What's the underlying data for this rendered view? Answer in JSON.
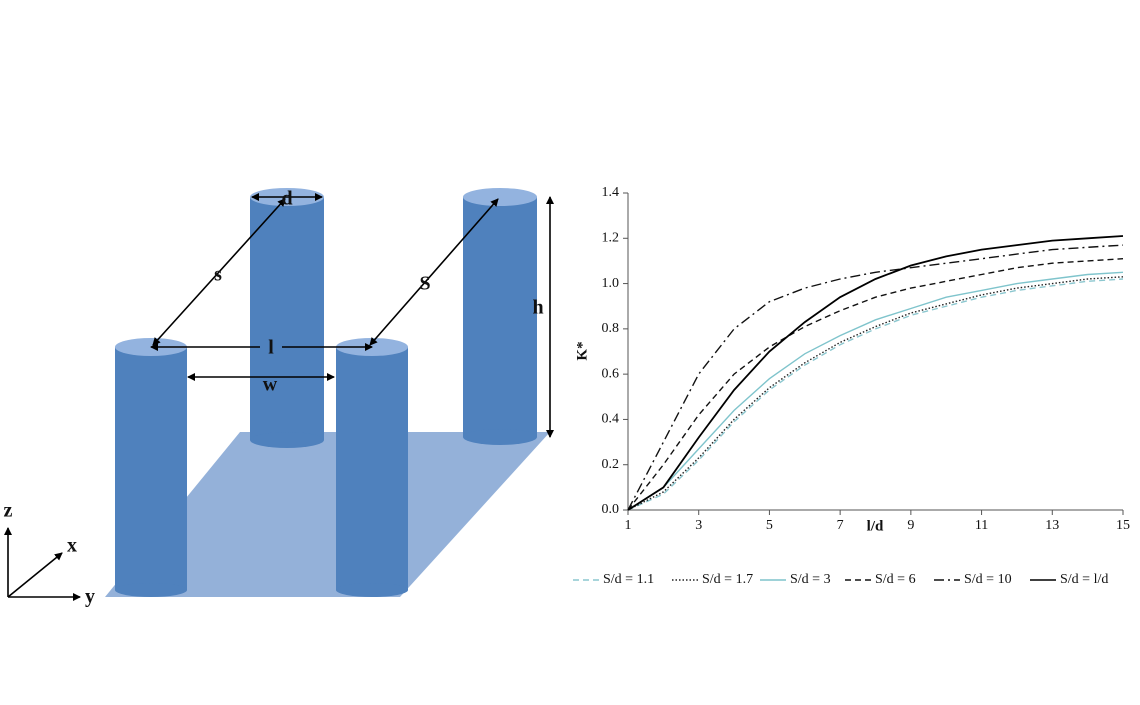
{
  "diagram": {
    "labels": {
      "d": "d",
      "s": "s",
      "S": "S",
      "l": "l",
      "w": "w",
      "h": "h",
      "z": "z",
      "x": "x",
      "y": "y"
    }
  },
  "chart_data": {
    "type": "line",
    "xlabel": "l/d",
    "ylabel": "K*",
    "x": [
      1,
      2,
      3,
      4,
      5,
      6,
      7,
      8,
      9,
      10,
      11,
      12,
      13,
      14,
      15
    ],
    "xlim": [
      1,
      15
    ],
    "xticks": [
      1,
      3,
      5,
      7,
      9,
      11,
      13,
      15
    ],
    "ylim": [
      0,
      1.4
    ],
    "yticks": [
      {
        "value": 0,
        "label": "0.0"
      },
      0.2,
      0.4,
      0.6,
      0.8,
      {
        "value": 1,
        "label": "1.0"
      },
      1.2,
      1.4
    ],
    "grid": false,
    "legend": "bottom",
    "series": [
      {
        "name": "S/d = 1.1",
        "color": "#8cc7cf",
        "dash": "dashed",
        "values": [
          0,
          0.07,
          0.22,
          0.39,
          0.53,
          0.64,
          0.73,
          0.8,
          0.86,
          0.9,
          0.94,
          0.97,
          0.99,
          1.01,
          1.02
        ]
      },
      {
        "name": "S/d = 1.7",
        "color": "#222222",
        "dash": "dotted",
        "values": [
          0,
          0.08,
          0.23,
          0.4,
          0.54,
          0.65,
          0.74,
          0.81,
          0.87,
          0.91,
          0.95,
          0.98,
          1.0,
          1.02,
          1.03
        ]
      },
      {
        "name": "S/d = 3",
        "color": "#7fc4cc",
        "dash": "solid",
        "values": [
          0,
          0.1,
          0.27,
          0.44,
          0.58,
          0.69,
          0.77,
          0.84,
          0.89,
          0.94,
          0.97,
          1.0,
          1.02,
          1.04,
          1.05
        ]
      },
      {
        "name": "S/d = 6",
        "color": "#111111",
        "dash": "dashed",
        "values": [
          0,
          0.2,
          0.42,
          0.6,
          0.72,
          0.81,
          0.88,
          0.94,
          0.98,
          1.01,
          1.04,
          1.07,
          1.09,
          1.1,
          1.11
        ]
      },
      {
        "name": "S/d = 10",
        "color": "#111111",
        "dash": "dashdot",
        "values": [
          0,
          0.3,
          0.6,
          0.8,
          0.92,
          0.98,
          1.02,
          1.05,
          1.07,
          1.09,
          1.11,
          1.13,
          1.15,
          1.16,
          1.17
        ]
      },
      {
        "name": "S/d = l/d",
        "color": "#000000",
        "dash": "solid",
        "values": [
          0,
          0.1,
          0.32,
          0.53,
          0.7,
          0.83,
          0.94,
          1.02,
          1.08,
          1.12,
          1.15,
          1.17,
          1.19,
          1.2,
          1.21
        ]
      }
    ]
  }
}
